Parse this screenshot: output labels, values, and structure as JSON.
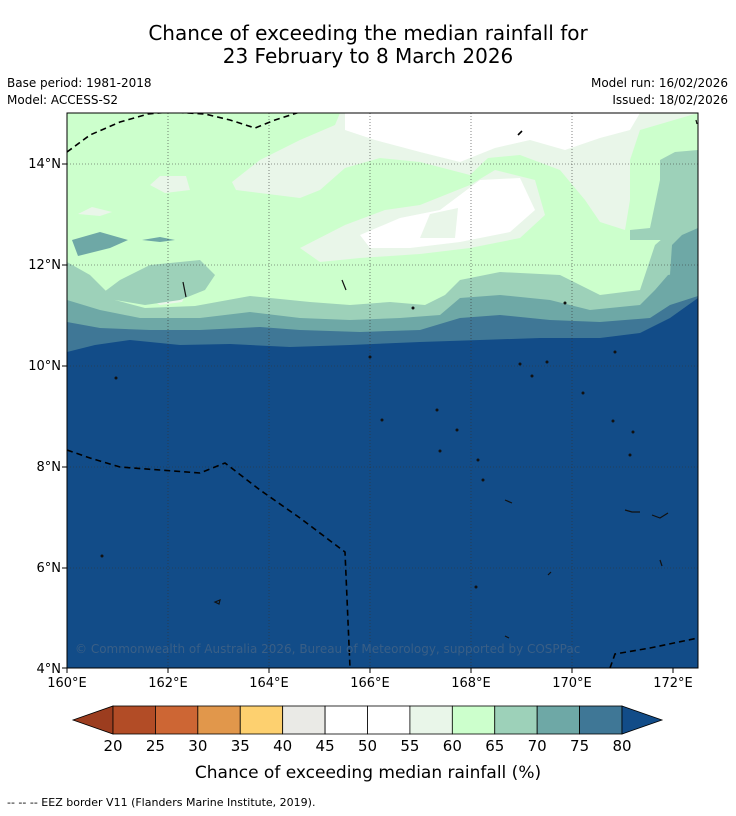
{
  "header": {
    "title_line1": "Chance of exceeding the median rainfall for",
    "title_line2": "23 February to 8 March 2026",
    "base_period": "Base period: 1981-2018",
    "model": "Model: ACCESS-S2",
    "model_run": "Model run: 16/02/2026",
    "issued": "Issued: 18/02/2026"
  },
  "map": {
    "lat_labels": [
      "4°N",
      "6°N",
      "8°N",
      "10°N",
      "12°N",
      "14°N"
    ],
    "lon_labels": [
      "160°E",
      "162°E",
      "164°E",
      "166°E",
      "168°E",
      "170°E",
      "172°E"
    ],
    "copyright": "© Commonwealth of Australia 2026, Bureau of Meteorology, supported by COSPPac"
  },
  "colorbar": {
    "ticks": [
      "20",
      "25",
      "30",
      "35",
      "40",
      "45",
      "50",
      "55",
      "60",
      "65",
      "70",
      "75",
      "80"
    ],
    "colors": [
      "#b24c26",
      "#cd6634",
      "#e1974b",
      "#fdd06f",
      "#eaeae6",
      "#ffffff",
      "#ffffff",
      "#e9f6e9",
      "#ccffcc",
      "#9dd1b9",
      "#6ea8a6",
      "#3f7796"
    ],
    "under_color": "#9c3d1f",
    "over_color": "#124c88",
    "label": "Chance of exceeding median rainfall (%)"
  },
  "footer": {
    "legend_text": "--  --  -- EEZ border V11 (Flanders Marine Institute, 2019)."
  }
}
